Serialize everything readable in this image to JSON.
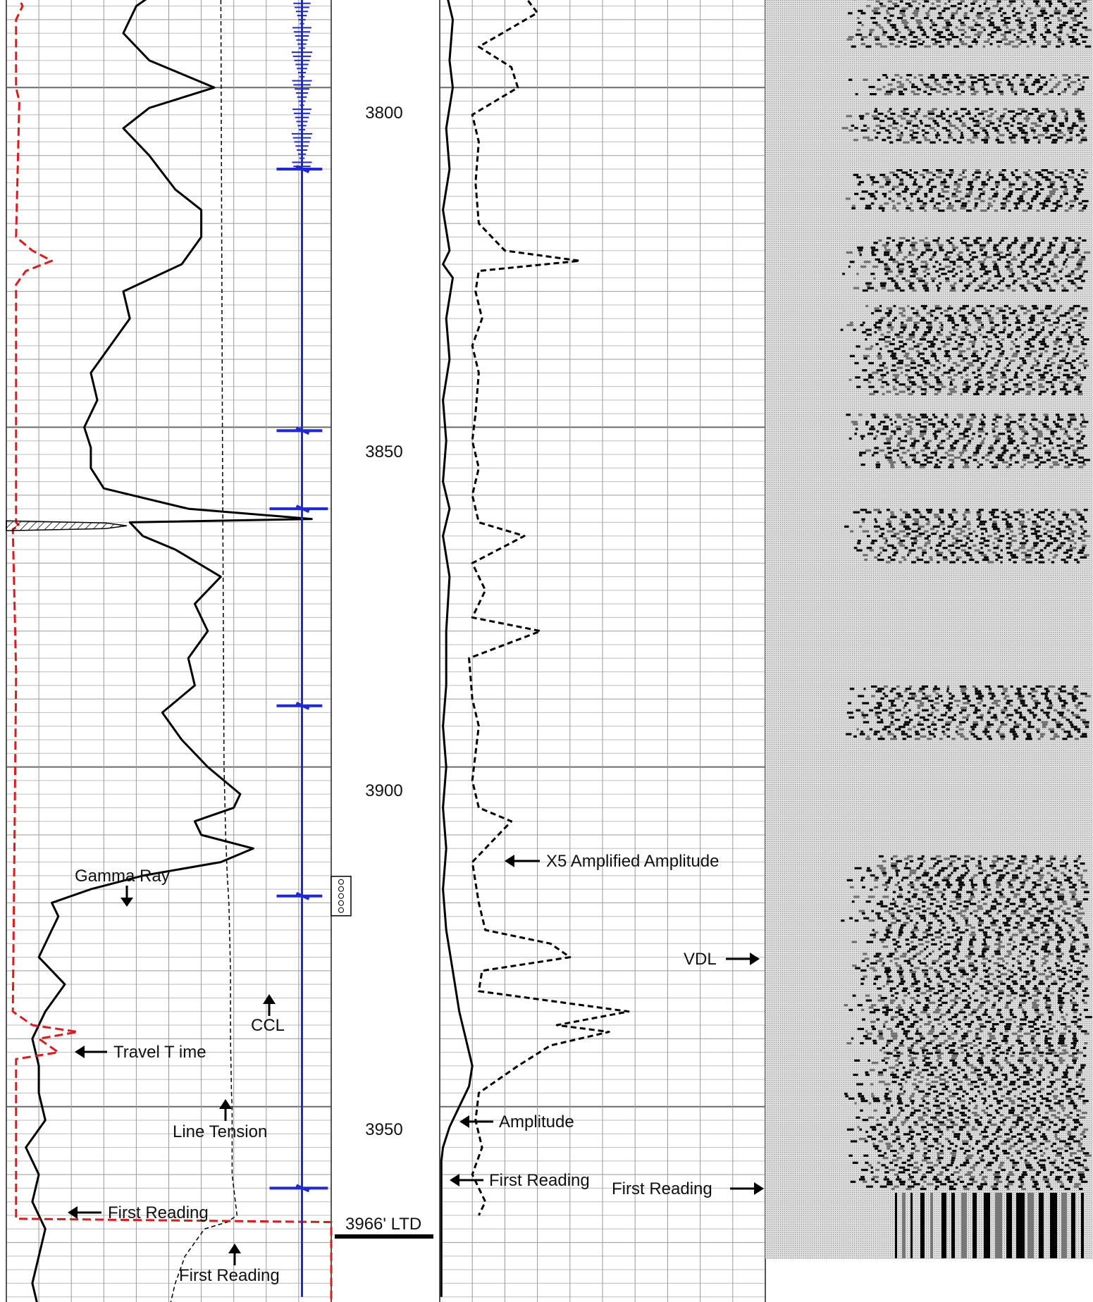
{
  "chart_data": {
    "type": "line",
    "title": "",
    "depth_axis": {
      "ticks": [
        "3800",
        "3850",
        "3900",
        "3950"
      ],
      "range": [
        3784,
        3980
      ],
      "major_step": 50,
      "minor_step": 2
    },
    "td_marker": "3966' LTD",
    "tracks": {
      "track1": {
        "curves": [
          {
            "name": "Gamma Ray",
            "color": "#000000",
            "style": "solid",
            "depth": [
              3784,
              3788,
              3792,
              3796,
              3800,
              3803,
              3806,
              3810,
              3815,
              3818,
              3822,
              3826,
              3830,
              3834,
              3838,
              3842,
              3846,
              3850,
              3853,
              3856,
              3859,
              3862,
              3863.5,
              3864,
              3866,
              3868,
              3872,
              3876,
              3880,
              3884,
              3888,
              3892,
              3896,
              3900,
              3904,
              3906,
              3908,
              3910,
              3912,
              3914,
              3916,
              3918,
              3920,
              3922,
              3924,
              3928,
              3932,
              3936,
              3940,
              3944,
              3948,
              3952,
              3956,
              3960,
              3964,
              3968,
              3972,
              3976,
              3980
            ],
            "value": [
              52,
              40,
              36,
              44,
              64,
              44,
              36,
              44,
              52,
              60,
              60,
              54,
              36,
              38,
              32,
              26,
              28,
              24,
              26,
              26,
              30,
              56,
              94,
              38,
              42,
              52,
              66,
              58,
              62,
              56,
              58,
              48,
              54,
              62,
              72,
              70,
              58,
              60,
              76,
              66,
              42,
              26,
              14,
              16,
              14,
              10,
              18,
              12,
              8,
              10,
              10,
              12,
              6,
              10,
              8,
              12,
              10,
              8,
              10
            ]
          },
          {
            "name": "Line Tension",
            "color": "#000000",
            "style": "dashed",
            "depth": [
              3784,
              3850,
              3900,
              3910,
              3916,
              3920,
              3930,
              3940,
              3948,
              3950,
              3960,
              3962,
              3964,
              3966,
              3967,
              3968,
              3970,
              3972,
              3976,
              3980
            ],
            "value": [
              66,
              66.5,
              67,
              67.5,
              68,
              68.5,
              69,
              69,
              69.3,
              69.5,
              69.5,
              70,
              70.5,
              71,
              68,
              61,
              58,
              55,
              52,
              50
            ]
          },
          {
            "name": "Travel Time",
            "color": "#e01a1a",
            "style": "dashed",
            "depth": [
              3784,
              3786,
              3788,
              3790,
              3800,
              3802,
              3822,
              3824,
              3825.5,
              3827,
              3829,
              3864,
              3864.5,
              3865,
              3886,
              3887,
              3936,
              3938,
              3939,
              3940,
              3942,
              3943,
              3966.5,
              3967,
              3980
            ],
            "value": [
              4,
              3,
              5,
              3,
              3,
              4,
              3,
              8,
              14,
              6,
              3,
              3,
              4,
              2,
              3,
              3,
              2,
              8,
              22,
              10,
              16,
              3,
              3,
              100,
              100
            ]
          },
          {
            "name": "CCL",
            "color": "#1f28d8",
            "style": "solid",
            "depth": [
              3784,
              3812,
              3850.5,
              3862,
              3891,
              3919,
              3962,
              3978
            ],
            "value": [
              91,
              91,
              91,
              91,
              91,
              91,
              91,
              91
            ]
          }
        ]
      },
      "track2": {
        "curves": [
          {
            "name": "Amplitude",
            "color": "#000000",
            "style": "solid",
            "depth": [
              3784,
              3786,
              3790,
              3796,
              3800,
              3806,
              3812,
              3818,
              3824,
              3826,
              3828,
              3834,
              3840,
              3846,
              3852,
              3858,
              3862,
              3866,
              3872,
              3880,
              3888,
              3894,
              3900,
              3906,
              3912,
              3918,
              3924,
              3930,
              3936,
              3940,
              3944,
              3947,
              3950,
              3953,
              3956,
              3958,
              3960,
              3962,
              3964,
              3966,
              3978
            ],
            "value": [
              4,
              2,
              4,
              3,
              4,
              2,
              3,
              1,
              3,
              1,
              4,
              2,
              3,
              1,
              2,
              1,
              3,
              1,
              3,
              2,
              2,
              1,
              2,
              1,
              2,
              1,
              2,
              4,
              6,
              8,
              10,
              9,
              6,
              3,
              1,
              0.5,
              0.5,
              0.5,
              0.5,
              0.5,
              0.5
            ]
          },
          {
            "name": "X5 Amplified Amplitude",
            "color": "#000000",
            "style": "dashed",
            "depth": [
              3784,
              3789,
              3794,
              3797,
              3800,
              3804,
              3808,
              3814,
              3820,
              3824,
              3825.5,
              3827,
              3830,
              3834,
              3838,
              3842,
              3848,
              3852,
              3856,
              3860,
              3864,
              3866,
              3870,
              3874,
              3878,
              3880,
              3884,
              3890,
              3894,
              3898,
              3902,
              3906,
              3908,
              3914,
              3920,
              3924,
              3926,
              3928,
              3930,
              3933,
              3936,
              3938,
              3939,
              3941,
              3944,
              3948,
              3952,
              3956,
              3960,
              3964,
              3966
            ],
            "value": [
              22,
              30,
              12,
              22,
              24,
              10,
              12,
              11,
              12,
              20,
              43,
              12,
              11,
              13,
              10,
              12,
              11,
              10,
              12,
              10,
              12,
              26,
              10,
              14,
              10,
              31,
              9,
              10,
              12,
              11,
              10,
              12,
              22,
              10,
              12,
              14,
              34,
              40,
              13,
              12,
              58,
              36,
              52,
              34,
              24,
              12,
              11,
              13,
              10,
              14,
              12
            ]
          }
        ]
      },
      "track3": {
        "name": "VDL",
        "calibration_label": "First Reading"
      }
    },
    "annotations": [
      {
        "text": "Gamma Ray"
      },
      {
        "text": "CCL"
      },
      {
        "text": "Travel T ime"
      },
      {
        "text": "Line Tension"
      },
      {
        "text": "First Reading"
      },
      {
        "text": "First Reading"
      },
      {
        "text": "X5 Amplified Amplitude"
      },
      {
        "text": "Amplitude"
      },
      {
        "text": "First Reading"
      },
      {
        "text": "First Reading"
      },
      {
        "text": "VDL"
      }
    ],
    "grid": true
  }
}
